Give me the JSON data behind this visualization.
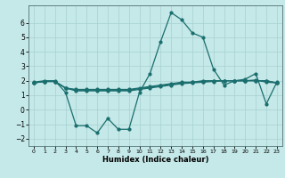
{
  "xlabel": "Humidex (Indice chaleur)",
  "background_color": "#c5e8e8",
  "grid_color": "#a8d0d0",
  "line_color": "#1a6e6e",
  "xlim": [
    -0.5,
    23.5
  ],
  "ylim": [
    -2.5,
    7.2
  ],
  "yticks": [
    -2,
    -1,
    0,
    1,
    2,
    3,
    4,
    5,
    6
  ],
  "xticks": [
    0,
    1,
    2,
    3,
    4,
    5,
    6,
    7,
    8,
    9,
    10,
    11,
    12,
    13,
    14,
    15,
    16,
    17,
    18,
    19,
    20,
    21,
    22,
    23
  ],
  "series": [
    {
      "x": [
        0,
        1,
        2,
        3,
        4,
        5,
        6,
        7,
        8,
        9,
        10,
        11,
        12,
        13,
        14,
        15,
        16,
        17,
        18,
        19,
        20,
        21,
        22,
        23
      ],
      "y": [
        1.9,
        2.0,
        2.0,
        1.2,
        -1.1,
        -1.1,
        -1.6,
        -0.6,
        -1.35,
        -1.35,
        1.2,
        2.5,
        4.7,
        6.7,
        6.2,
        5.3,
        5.0,
        2.8,
        1.7,
        2.0,
        2.1,
        2.5,
        0.4,
        1.9
      ]
    },
    {
      "x": [
        0,
        1,
        2,
        3,
        4,
        5,
        6,
        7,
        8,
        9,
        10,
        11,
        12,
        13,
        14,
        15,
        16,
        17,
        18,
        19,
        20,
        21,
        22,
        23
      ],
      "y": [
        1.85,
        1.95,
        1.95,
        1.5,
        1.4,
        1.4,
        1.4,
        1.4,
        1.4,
        1.4,
        1.5,
        1.6,
        1.7,
        1.8,
        1.9,
        1.9,
        2.0,
        2.0,
        2.0,
        2.0,
        2.0,
        2.0,
        2.0,
        1.85
      ]
    },
    {
      "x": [
        0,
        1,
        2,
        3,
        4,
        5,
        6,
        7,
        8,
        9,
        10,
        11,
        12,
        13,
        14,
        15,
        16,
        17,
        18,
        19,
        20,
        21,
        22,
        23
      ],
      "y": [
        1.85,
        1.95,
        1.95,
        1.5,
        1.35,
        1.35,
        1.35,
        1.35,
        1.35,
        1.35,
        1.45,
        1.55,
        1.65,
        1.75,
        1.85,
        1.9,
        1.95,
        2.0,
        2.0,
        2.0,
        2.0,
        2.0,
        2.0,
        1.85
      ]
    },
    {
      "x": [
        0,
        1,
        2,
        3,
        4,
        5,
        6,
        7,
        8,
        9,
        10,
        11,
        12,
        13,
        14,
        15,
        16,
        17,
        18,
        19,
        20,
        21,
        22,
        23
      ],
      "y": [
        1.85,
        1.95,
        1.95,
        1.5,
        1.3,
        1.3,
        1.3,
        1.3,
        1.3,
        1.3,
        1.4,
        1.5,
        1.6,
        1.7,
        1.8,
        1.85,
        1.9,
        1.95,
        2.0,
        2.0,
        2.0,
        2.05,
        1.9,
        1.85
      ]
    }
  ],
  "marker_size": 2.0,
  "line_width": 0.9
}
